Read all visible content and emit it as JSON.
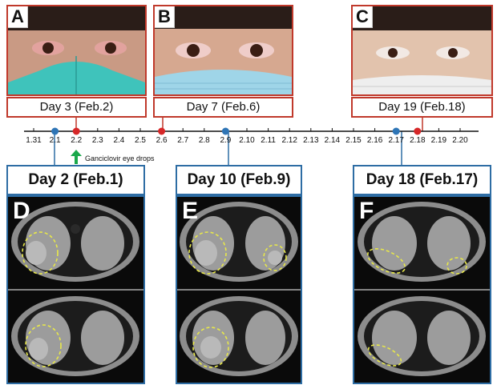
{
  "eye_panels": [
    {
      "letter": "A",
      "caption": "Day 3 (Feb.2)",
      "mask_color": "#3fc3bb",
      "eye_redness": "#d36b6b"
    },
    {
      "letter": "B",
      "caption": "Day 7 (Feb.6)",
      "mask_color": "#9fd5e8",
      "eye_redness": "#e3a0a0"
    },
    {
      "letter": "C",
      "caption": "Day 19 (Feb.18)",
      "mask_color": "#eeeeee",
      "eye_redness": "#f2e9e4"
    }
  ],
  "timeline": {
    "ticks": [
      "1.31",
      "2.1",
      "2.2",
      "2.3",
      "2.4",
      "2.5",
      "2.6",
      "2.7",
      "2.8",
      "2.9",
      "2.10",
      "2.11",
      "2.12",
      "2.13",
      "2.14",
      "2.15",
      "2.16",
      "2.17",
      "2.18",
      "2.19",
      "2.20"
    ],
    "red_markers": [
      "2.2",
      "2.6",
      "2.18"
    ],
    "blue_markers": [
      "2.1",
      "2.9",
      "2.17"
    ],
    "annotation": "Ganciclovir eye drops",
    "marker_colors": {
      "red": "#d62728",
      "blue": "#2e75b6",
      "arrow": "#1aa84b"
    }
  },
  "ct_panels": [
    {
      "letter": "D",
      "caption": "Day 2 (Feb.1)"
    },
    {
      "letter": "E",
      "caption": "Day 10 (Feb.9)"
    },
    {
      "letter": "F",
      "caption": "Day 18 (Feb.17)"
    }
  ],
  "colors": {
    "eye_border": "#c0392b",
    "ct_border": "#2e6da4",
    "lesion_circle": "#e8e84a"
  }
}
